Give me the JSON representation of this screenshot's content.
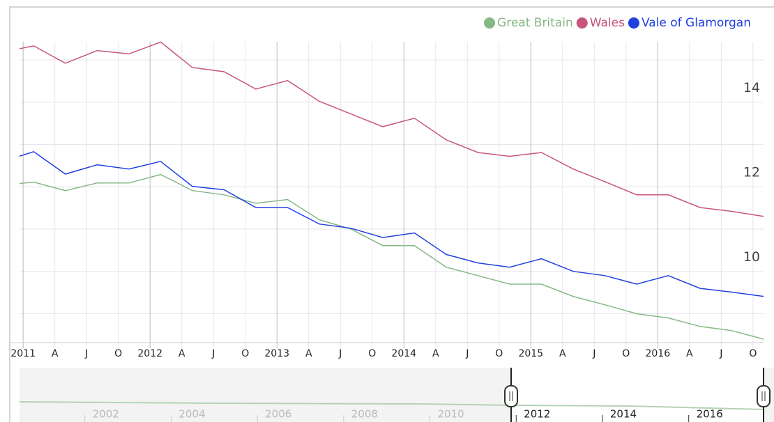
{
  "chart_data": {
    "type": "line",
    "x": [
      "2010-12",
      "2011-02",
      "2011-05",
      "2011-08",
      "2011-11",
      "2012-02",
      "2012-05",
      "2012-08",
      "2012-11",
      "2013-02",
      "2013-05",
      "2013-08",
      "2013-11",
      "2014-02",
      "2014-05",
      "2014-08",
      "2014-11",
      "2015-02",
      "2015-05",
      "2015-08",
      "2015-11",
      "2016-02",
      "2016-05",
      "2016-08",
      "2016-11"
    ],
    "series": [
      {
        "name": "Great Britain",
        "color": "#86b886",
        "values": [
          12.06,
          12.11,
          11.91,
          12.09,
          12.09,
          12.29,
          11.91,
          11.81,
          11.61,
          11.7,
          11.22,
          11.0,
          10.61,
          10.61,
          10.1,
          9.9,
          9.7,
          9.7,
          9.41,
          9.21,
          9.0,
          8.9,
          8.7,
          8.6,
          8.4
        ]
      },
      {
        "name": "Wales",
        "color": "#c8557a",
        "values": [
          15.23,
          15.33,
          14.92,
          15.22,
          15.14,
          15.42,
          14.82,
          14.72,
          14.31,
          14.51,
          14.02,
          13.72,
          13.42,
          13.62,
          13.11,
          12.81,
          12.72,
          12.81,
          12.42,
          12.12,
          11.81,
          11.81,
          11.51,
          11.42,
          11.3
        ]
      },
      {
        "name": "Vale of Glamorgan",
        "color": "#2040e0",
        "values": [
          12.67,
          12.83,
          12.3,
          12.52,
          12.42,
          12.6,
          12.01,
          11.93,
          11.51,
          11.51,
          11.12,
          11.02,
          10.8,
          10.91,
          10.4,
          10.2,
          10.1,
          10.3,
          10.0,
          9.9,
          9.7,
          9.9,
          9.6,
          9.51,
          9.41
        ]
      }
    ],
    "xlim": [
      "2010-12",
      "2016-11"
    ],
    "xticks": [
      {
        "value": "2011-01",
        "label": "2011"
      },
      {
        "value": "2011-04",
        "label": "A"
      },
      {
        "value": "2011-07",
        "label": "J"
      },
      {
        "value": "2011-10",
        "label": "O"
      },
      {
        "value": "2012-01",
        "label": "2012"
      },
      {
        "value": "2012-04",
        "label": "A"
      },
      {
        "value": "2012-07",
        "label": "J"
      },
      {
        "value": "2012-10",
        "label": "O"
      },
      {
        "value": "2013-01",
        "label": "2013"
      },
      {
        "value": "2013-04",
        "label": "A"
      },
      {
        "value": "2013-07",
        "label": "J"
      },
      {
        "value": "2013-10",
        "label": "O"
      },
      {
        "value": "2014-01",
        "label": "2014"
      },
      {
        "value": "2014-04",
        "label": "A"
      },
      {
        "value": "2014-07",
        "label": "J"
      },
      {
        "value": "2014-10",
        "label": "O"
      },
      {
        "value": "2015-01",
        "label": "2015"
      },
      {
        "value": "2015-04",
        "label": "A"
      },
      {
        "value": "2015-07",
        "label": "J"
      },
      {
        "value": "2015-10",
        "label": "O"
      },
      {
        "value": "2016-01",
        "label": "2016"
      },
      {
        "value": "2016-04",
        "label": "A"
      },
      {
        "value": "2016-07",
        "label": "J"
      },
      {
        "value": "2016-10",
        "label": "O"
      }
    ],
    "ylim": [
      8.35,
      16.25
    ],
    "yticks": [
      10,
      12,
      14
    ],
    "minor_yticks": [
      9,
      11,
      13,
      15
    ],
    "grid": true,
    "legend": "top-right",
    "navigator": {
      "xlim": [
        "2000-01",
        "2017-04"
      ],
      "xticks": [
        {
          "value": "2002-01",
          "label": "2002"
        },
        {
          "value": "2004-01",
          "label": "2004"
        },
        {
          "value": "2006-01",
          "label": "2006"
        },
        {
          "value": "2008-01",
          "label": "2008"
        },
        {
          "value": "2010-01",
          "label": "2010"
        },
        {
          "value": "2012-01",
          "label": "2012"
        },
        {
          "value": "2014-01",
          "label": "2014"
        },
        {
          "value": "2016-01",
          "label": "2016"
        }
      ]
    }
  }
}
